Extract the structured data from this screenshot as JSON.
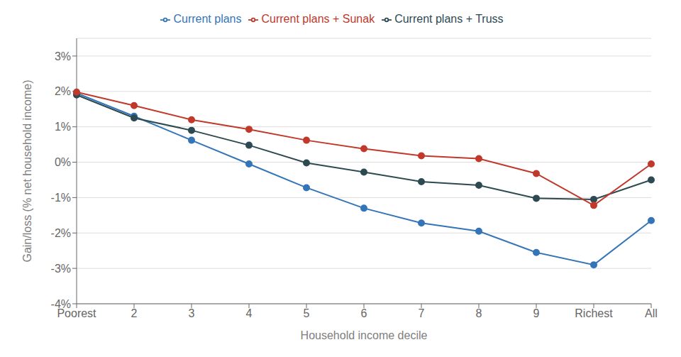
{
  "chart_data": {
    "type": "line",
    "categories": [
      "Poorest",
      "2",
      "3",
      "4",
      "5",
      "6",
      "7",
      "8",
      "9",
      "Richest",
      "All"
    ],
    "series": [
      {
        "name": "Current plans",
        "color": "#3475b8",
        "marker": "circle",
        "values": [
          1.95,
          1.3,
          0.62,
          -0.05,
          -0.72,
          -1.3,
          -1.72,
          -1.95,
          -2.55,
          -2.9,
          -1.65
        ]
      },
      {
        "name": "Current plans + Truss",
        "color": "#2d4a52",
        "marker": "circle",
        "values": [
          1.9,
          1.25,
          0.9,
          0.48,
          -0.02,
          -0.28,
          -0.55,
          -0.65,
          -1.02,
          -1.05,
          -0.5
        ]
      },
      {
        "name": "Current plans + Sunak",
        "color": "#c0392b",
        "marker": "circle",
        "values": [
          1.98,
          1.6,
          1.2,
          0.93,
          0.62,
          0.38,
          0.18,
          0.1,
          -0.32,
          -1.22,
          -0.05
        ]
      }
    ],
    "xlabel": "Household income decile",
    "ylabel": "Gain/loss (% net household income)",
    "ylim": [
      -4.0,
      3.5
    ],
    "yticks": [
      {
        "value": -4,
        "label": "-4%"
      },
      {
        "value": -3,
        "label": "-3%"
      },
      {
        "value": -2,
        "label": "-2%"
      },
      {
        "value": -1,
        "label": "-1%"
      },
      {
        "value": 0,
        "label": "0%"
      },
      {
        "value": 1,
        "label": "1%"
      },
      {
        "value": 2,
        "label": "2%"
      },
      {
        "value": 3,
        "label": "3%"
      }
    ],
    "grid": true,
    "legend": "top"
  }
}
